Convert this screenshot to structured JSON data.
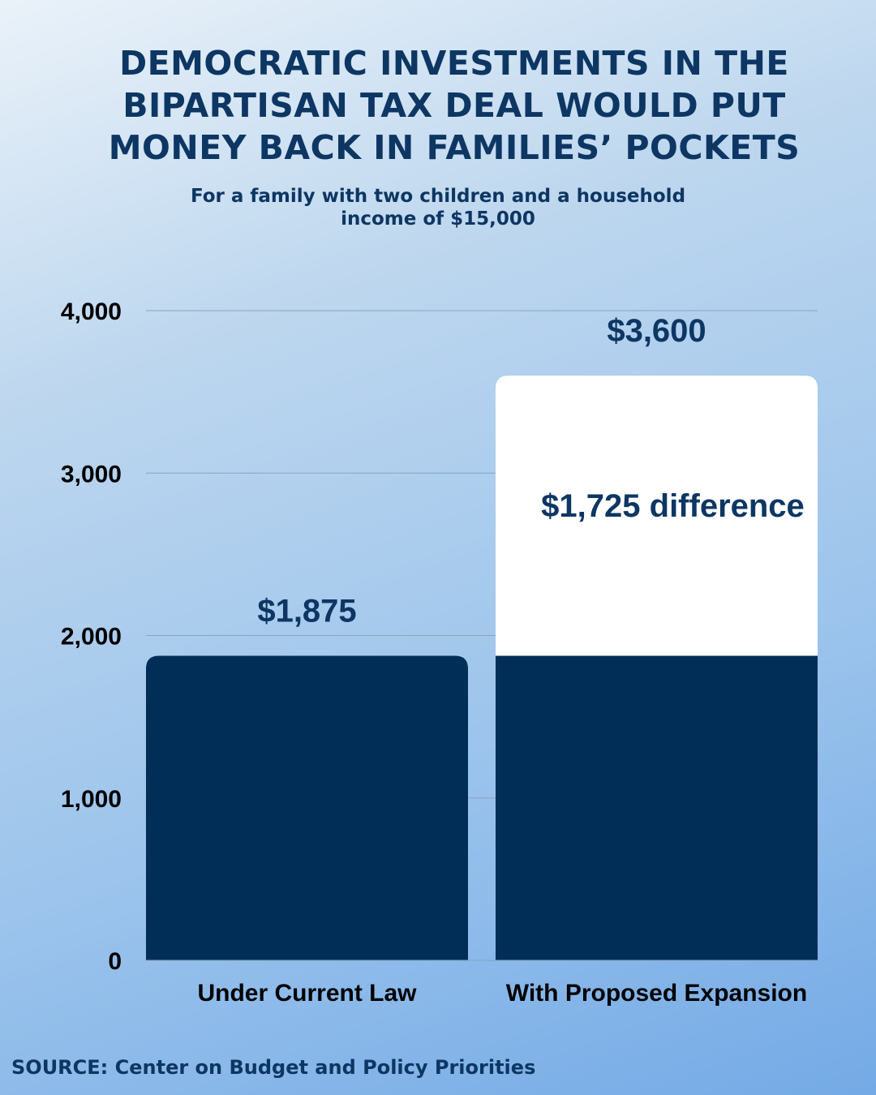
{
  "title_lines": [
    "DEMOCRATIC INVESTMENTS IN THE",
    "BIPARTISAN TAX DEAL WOULD PUT",
    "MONEY BACK IN FAMILIES’ POCKETS"
  ],
  "subtitle_lines": [
    "For a family with two children and a household",
    "income of $15,000"
  ],
  "source": "SOURCE: Center on Budget and Policy Priorities",
  "colors": {
    "bar_fill": "#002e56",
    "difference_fill": "#ffffff",
    "gridline": "#8aa4bf",
    "text": "#0d3663"
  },
  "chart_data": {
    "type": "bar",
    "title": "DEMOCRATIC INVESTMENTS IN THE BIPARTISAN TAX DEAL WOULD PUT MONEY BACK IN FAMILIES’ POCKETS",
    "subtitle": "For a family with two children and a household income of $15,000",
    "xlabel": "",
    "ylabel": "",
    "categories": [
      "Under Current Law",
      "With Proposed Expansion"
    ],
    "values": [
      1875,
      3600
    ],
    "data_labels": [
      "$1,875",
      "$3,600"
    ],
    "stack_base": [
      1875,
      1875
    ],
    "difference": {
      "value": 1725,
      "label": "$1,725 difference",
      "category": "With Proposed Expansion"
    },
    "ylim": [
      0,
      4000
    ],
    "yticks": [
      0,
      1000,
      2000,
      3000,
      4000
    ],
    "ytick_labels": [
      "0",
      "1,000",
      "2,000",
      "3,000",
      "4,000"
    ],
    "grid": true,
    "legend": "none"
  }
}
